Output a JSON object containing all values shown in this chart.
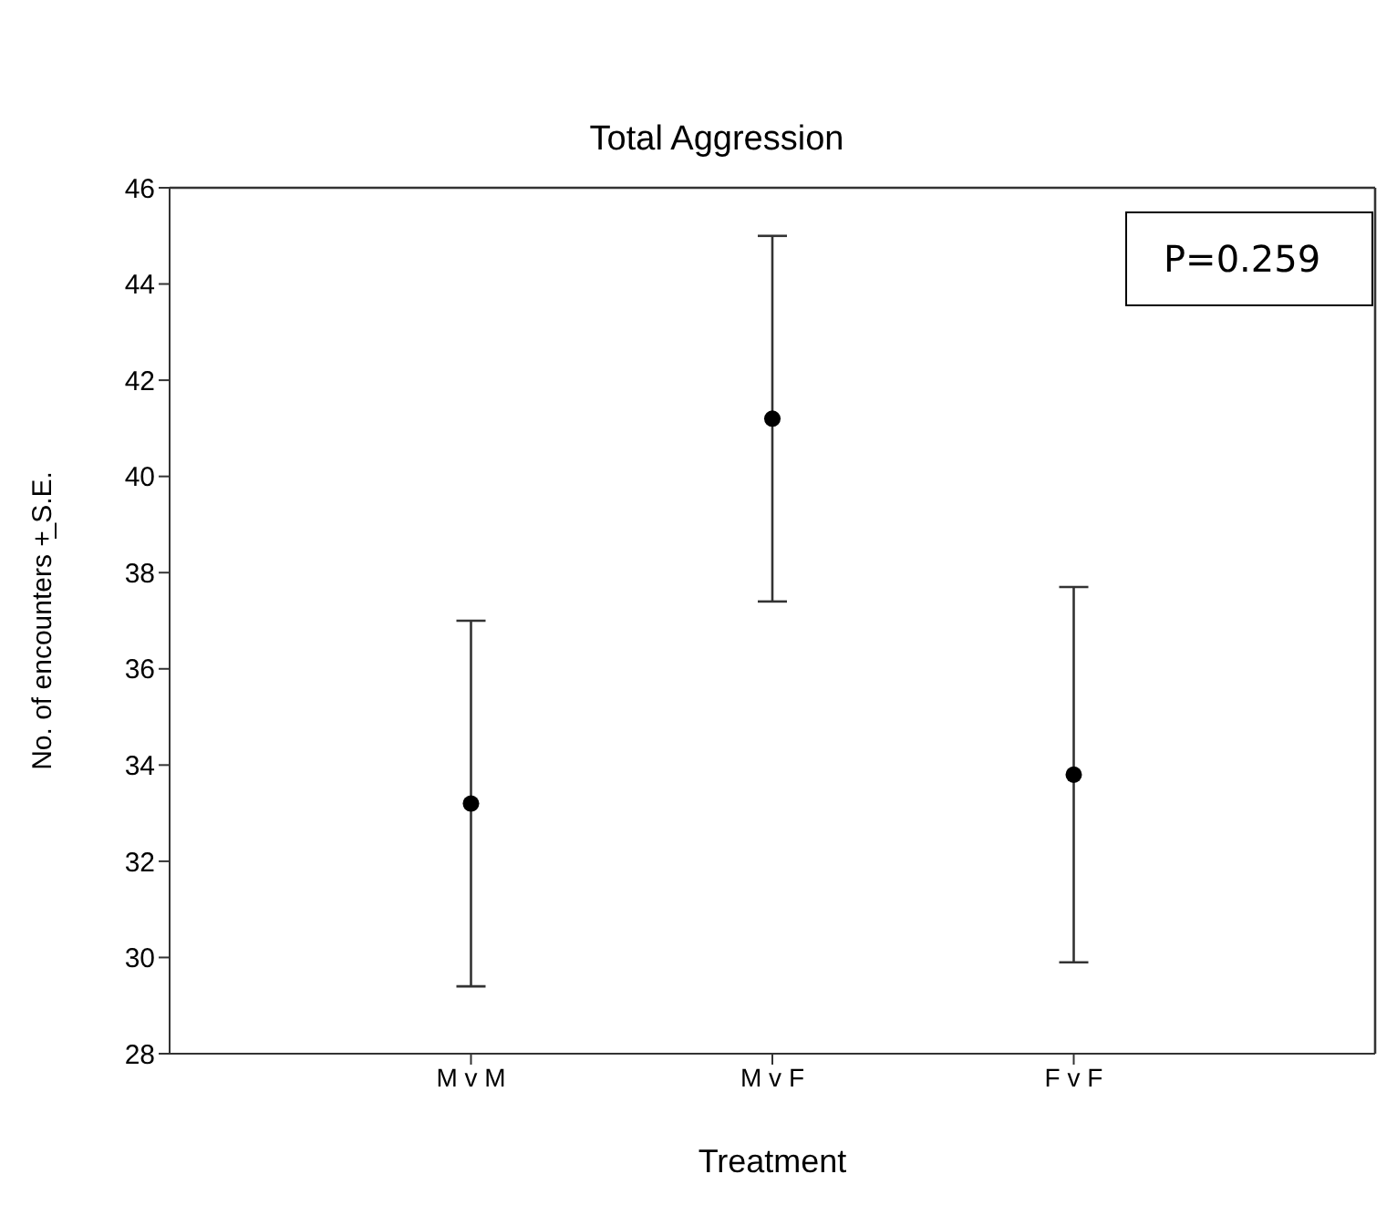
{
  "chart_data": {
    "type": "scatter",
    "title": "Total Aggression",
    "xlabel": "Treatment",
    "ylabel": "No. of encounters +̲ S.E.",
    "categories": [
      "M v M",
      "M v F",
      "F v F"
    ],
    "series": [
      {
        "color": "#000000",
        "values": [
          33.2,
          41.2,
          33.8
        ],
        "errors": [
          3.8,
          3.8,
          3.9
        ]
      }
    ],
    "ylim": [
      28,
      46
    ],
    "yticks": [
      28,
      30,
      32,
      34,
      36,
      38,
      40,
      42,
      44,
      46
    ],
    "marker": "circle",
    "annotations": [
      "P=0.259"
    ]
  }
}
